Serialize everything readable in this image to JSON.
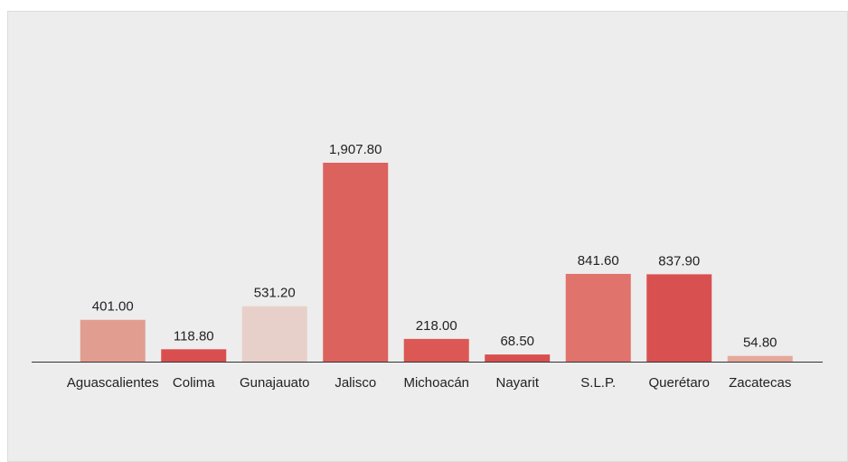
{
  "chart_data": {
    "type": "bar",
    "categories": [
      "Aguascalientes",
      "Colima",
      "Gunajauato",
      "Jalisco",
      "Michoacán",
      "Nayarit",
      "S.L.P.",
      "Querétaro",
      "Zacatecas"
    ],
    "values": [
      401.0,
      118.8,
      531.2,
      1907.8,
      218.0,
      68.5,
      841.6,
      837.9,
      54.8
    ],
    "value_labels": [
      "401.00",
      "118.80",
      "531.20",
      "1,907.80",
      "218.00",
      "68.50",
      "841.60",
      "837.90",
      "54.80"
    ],
    "colors": [
      "#e19d90",
      "#d94f4f",
      "#e8d0ca",
      "#dc625e",
      "#db5854",
      "#d94f4f",
      "#e0736c",
      "#d95050",
      "#e7a89b"
    ]
  }
}
